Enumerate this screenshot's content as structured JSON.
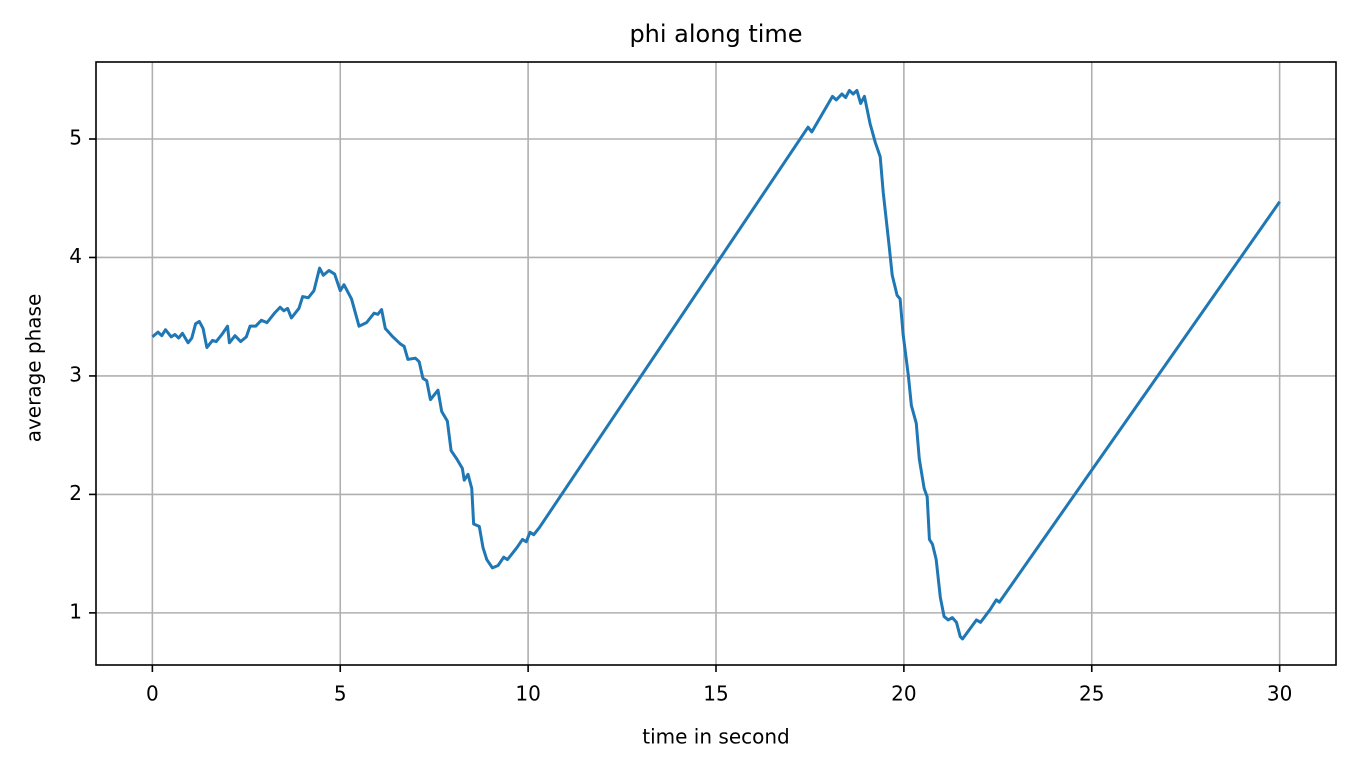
{
  "chart_data": {
    "type": "line",
    "title": "phi along time",
    "x_label": "time in second",
    "y_label": "average phase",
    "xlim": [
      -1.5,
      31.5
    ],
    "ylim": [
      0.56,
      5.65
    ],
    "xticks": [
      0,
      5,
      10,
      15,
      20,
      25,
      30
    ],
    "yticks": [
      1,
      2,
      3,
      4,
      5
    ],
    "grid": true,
    "series": [
      {
        "name": "phi",
        "color": "#1f77b4",
        "x": [
          0,
          0.15,
          0.25,
          0.35,
          0.5,
          0.6,
          0.7,
          0.8,
          0.95,
          1.05,
          1.15,
          1.25,
          1.35,
          1.45,
          1.6,
          1.7,
          1.85,
          2.0,
          2.05,
          2.2,
          2.35,
          2.5,
          2.6,
          2.75,
          2.9,
          3.05,
          3.25,
          3.4,
          3.5,
          3.6,
          3.7,
          3.9,
          4.0,
          4.15,
          4.3,
          4.45,
          4.55,
          4.7,
          4.85,
          5.0,
          5.1,
          5.3,
          5.5,
          5.7,
          5.9,
          6.0,
          6.1,
          6.2,
          6.4,
          6.6,
          6.7,
          6.8,
          7.0,
          7.1,
          7.2,
          7.3,
          7.4,
          7.6,
          7.7,
          7.85,
          7.95,
          8.1,
          8.25,
          8.3,
          8.4,
          8.5,
          8.55,
          8.7,
          8.8,
          8.9,
          9.05,
          9.2,
          9.35,
          9.45,
          9.7,
          9.85,
          9.95,
          10.05,
          10.15,
          10.3,
          17.45,
          17.55,
          18.1,
          18.2,
          18.35,
          18.45,
          18.55,
          18.65,
          18.75,
          18.85,
          18.95,
          19.1,
          19.24,
          19.37,
          19.45,
          19.6,
          19.69,
          19.82,
          19.9,
          19.98,
          20.12,
          20.2,
          20.33,
          20.41,
          20.54,
          20.62,
          20.68,
          20.76,
          20.86,
          20.97,
          21.07,
          21.18,
          21.29,
          21.4,
          21.5,
          21.56,
          21.77,
          21.93,
          22.04,
          22.3,
          22.46,
          22.54,
          30
        ],
        "values": [
          3.33,
          3.37,
          3.34,
          3.39,
          3.33,
          3.35,
          3.32,
          3.36,
          3.28,
          3.32,
          3.44,
          3.46,
          3.4,
          3.24,
          3.3,
          3.29,
          3.35,
          3.42,
          3.28,
          3.34,
          3.29,
          3.33,
          3.42,
          3.42,
          3.47,
          3.45,
          3.53,
          3.58,
          3.55,
          3.57,
          3.49,
          3.57,
          3.67,
          3.66,
          3.72,
          3.91,
          3.85,
          3.89,
          3.86,
          3.72,
          3.77,
          3.65,
          3.42,
          3.45,
          3.53,
          3.52,
          3.56,
          3.4,
          3.33,
          3.27,
          3.25,
          3.14,
          3.15,
          3.12,
          2.98,
          2.96,
          2.8,
          2.88,
          2.7,
          2.62,
          2.37,
          2.3,
          2.22,
          2.12,
          2.17,
          2.05,
          1.75,
          1.73,
          1.55,
          1.45,
          1.38,
          1.4,
          1.47,
          1.45,
          1.55,
          1.62,
          1.6,
          1.68,
          1.66,
          1.72,
          5.1,
          5.06,
          5.36,
          5.33,
          5.38,
          5.35,
          5.41,
          5.38,
          5.41,
          5.3,
          5.36,
          5.13,
          4.97,
          4.85,
          4.55,
          4.12,
          3.85,
          3.68,
          3.65,
          3.35,
          3.0,
          2.75,
          2.6,
          2.3,
          2.05,
          1.98,
          1.62,
          1.58,
          1.45,
          1.13,
          0.97,
          0.94,
          0.96,
          0.92,
          0.8,
          0.78,
          0.87,
          0.94,
          0.92,
          1.03,
          1.11,
          1.09,
          4.47
        ]
      }
    ]
  }
}
